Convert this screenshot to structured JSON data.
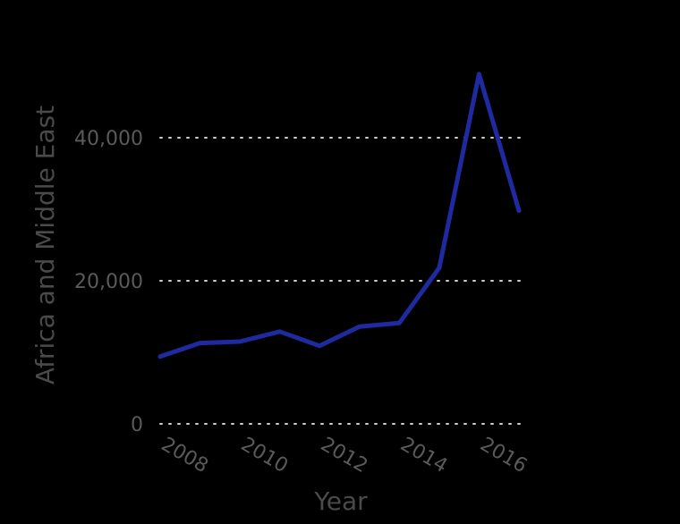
{
  "chart_data": {
    "type": "line",
    "xlabel": "Year",
    "ylabel": "Africa and Middle East",
    "x": [
      2008,
      2009,
      2010,
      2011,
      2012,
      2013,
      2014,
      2015,
      2016,
      2017
    ],
    "series": [
      {
        "values": [
          9400,
          11300,
          11500,
          12900,
          10900,
          13600,
          14100,
          21800,
          48900,
          29800
        ],
        "color": "#1f2aa0"
      }
    ],
    "xticks": [
      "2008",
      "2010",
      "2012",
      "2014",
      "2016"
    ],
    "yticks": [
      "0",
      "20,000",
      "40,000"
    ],
    "xlim": [
      2008,
      2017
    ],
    "ylim": [
      0,
      50000
    ],
    "grid": "horizontal dotted",
    "legend": "none"
  }
}
